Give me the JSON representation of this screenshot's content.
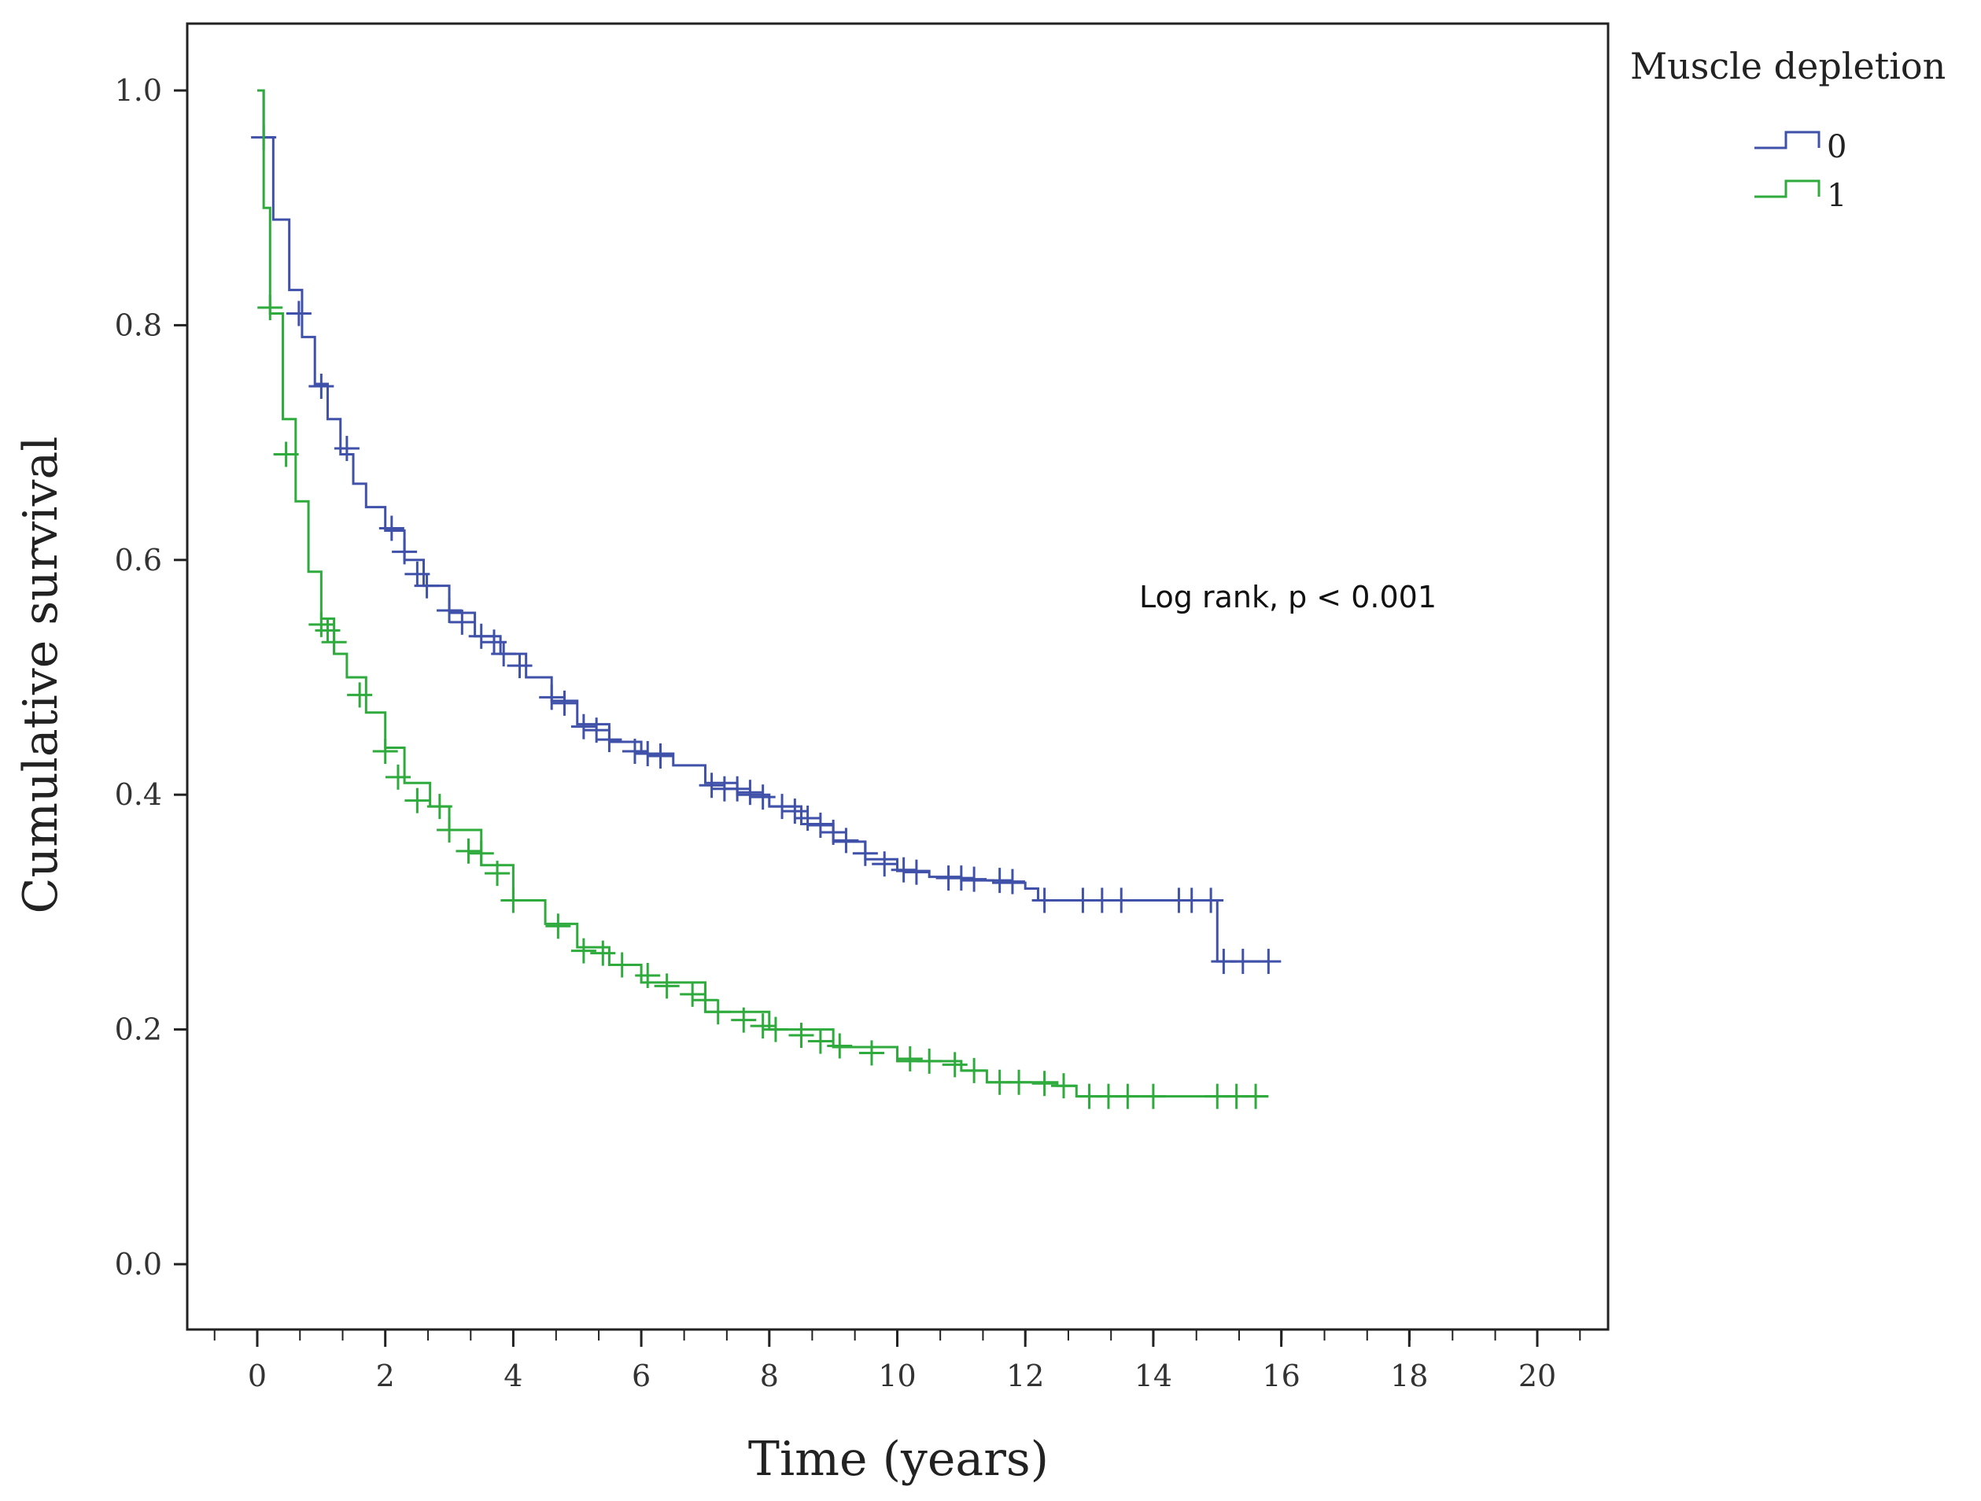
{
  "chart_data": {
    "type": "line",
    "subtype": "kaplan-meier",
    "xlabel": "Time (years)",
    "ylabel": "Cumulative survival",
    "xlim": [
      0,
      20
    ],
    "ylim": [
      0,
      1
    ],
    "x_ticks": [
      0,
      2,
      4,
      6,
      8,
      10,
      12,
      14,
      16,
      18,
      20
    ],
    "x_tick_labels": [
      "0",
      "2",
      "4",
      "6",
      "8",
      "10",
      "12",
      "14",
      "16",
      "18",
      "20"
    ],
    "x_minor_step": 0.667,
    "y_ticks": [
      0,
      0.2,
      0.4,
      0.6,
      0.8,
      1.0
    ],
    "y_tick_labels": [
      "0.0",
      "0.2",
      "0.4",
      "0.6",
      "0.8",
      "1.0"
    ],
    "grid": false,
    "legend": {
      "title": "Muscle depletion",
      "position": "top-right-outside",
      "entries": [
        {
          "label": "0",
          "color": "#3f51a8"
        },
        {
          "label": "1",
          "color": "#2eab3c"
        }
      ]
    },
    "annotation": "Log rank, p < 0.001",
    "series": [
      {
        "name": "0",
        "color": "#3f51a8",
        "x": [
          0,
          0.1,
          0.25,
          0.5,
          0.7,
          0.9,
          1.1,
          1.3,
          1.5,
          1.7,
          2.0,
          2.3,
          2.6,
          3.0,
          3.4,
          3.8,
          4.2,
          4.6,
          5.0,
          5.5,
          6.0,
          6.5,
          7.0,
          7.5,
          8.0,
          8.5,
          9.0,
          9.5,
          10.0,
          10.5,
          11.0,
          11.5,
          12.0,
          12.2,
          14.0,
          15.0,
          15.0,
          15.8
        ],
        "y": [
          1.0,
          0.96,
          0.89,
          0.83,
          0.79,
          0.75,
          0.72,
          0.69,
          0.665,
          0.645,
          0.625,
          0.6,
          0.578,
          0.555,
          0.535,
          0.52,
          0.5,
          0.48,
          0.46,
          0.445,
          0.435,
          0.425,
          0.41,
          0.4,
          0.39,
          0.375,
          0.36,
          0.345,
          0.335,
          0.33,
          0.327,
          0.325,
          0.32,
          0.31,
          0.31,
          0.31,
          0.258,
          0.258
        ],
        "censor_x": [
          0.1,
          0.65,
          1.0,
          1.4,
          2.1,
          2.3,
          2.5,
          2.65,
          3.0,
          3.2,
          3.5,
          3.7,
          3.85,
          4.1,
          4.6,
          4.8,
          5.1,
          5.3,
          5.5,
          5.9,
          6.1,
          6.3,
          7.1,
          7.3,
          7.5,
          7.7,
          7.9,
          8.2,
          8.4,
          8.6,
          8.8,
          9.0,
          9.2,
          9.5,
          9.8,
          10.1,
          10.3,
          10.8,
          11.0,
          11.2,
          11.6,
          11.8,
          12.3,
          12.9,
          13.2,
          13.5,
          14.4,
          14.6,
          14.9,
          15.1,
          15.4,
          15.8
        ],
        "censor_y": [
          0.96,
          0.81,
          0.748,
          0.695,
          0.627,
          0.607,
          0.588,
          0.578,
          0.557,
          0.547,
          0.535,
          0.53,
          0.52,
          0.51,
          0.483,
          0.478,
          0.458,
          0.455,
          0.447,
          0.437,
          0.435,
          0.433,
          0.408,
          0.405,
          0.405,
          0.402,
          0.398,
          0.39,
          0.386,
          0.38,
          0.374,
          0.368,
          0.361,
          0.35,
          0.341,
          0.336,
          0.334,
          0.329,
          0.329,
          0.328,
          0.327,
          0.326,
          0.31,
          0.31,
          0.31,
          0.31,
          0.31,
          0.31,
          0.31,
          0.258,
          0.258,
          0.258
        ]
      },
      {
        "name": "1",
        "color": "#2eab3c",
        "x": [
          0,
          0.1,
          0.2,
          0.4,
          0.6,
          0.8,
          1.0,
          1.2,
          1.4,
          1.7,
          2.0,
          2.3,
          2.7,
          3.0,
          3.5,
          4.0,
          4.5,
          5.0,
          5.5,
          6.0,
          7.0,
          8.0,
          9.0,
          10.0,
          11.0,
          11.4,
          12.5,
          12.8,
          15.8
        ],
        "y": [
          1.0,
          0.9,
          0.81,
          0.72,
          0.65,
          0.59,
          0.55,
          0.52,
          0.5,
          0.47,
          0.44,
          0.41,
          0.39,
          0.37,
          0.34,
          0.31,
          0.29,
          0.27,
          0.255,
          0.24,
          0.215,
          0.2,
          0.185,
          0.173,
          0.165,
          0.155,
          0.152,
          0.143,
          0.143
        ],
        "censor_x": [
          0.2,
          0.45,
          1.0,
          1.1,
          1.2,
          1.6,
          2.0,
          2.2,
          2.5,
          2.85,
          3.0,
          3.3,
          3.5,
          3.75,
          4.0,
          4.7,
          5.1,
          5.4,
          5.7,
          6.1,
          6.4,
          6.8,
          7.0,
          7.2,
          7.6,
          7.9,
          8.1,
          8.5,
          8.8,
          9.1,
          9.6,
          10.2,
          10.5,
          10.9,
          11.2,
          11.6,
          11.9,
          12.3,
          12.6,
          13.0,
          13.3,
          13.6,
          14.0,
          15.0,
          15.3,
          15.6
        ],
        "censor_y": [
          0.815,
          0.69,
          0.545,
          0.54,
          0.53,
          0.485,
          0.437,
          0.415,
          0.395,
          0.39,
          0.37,
          0.352,
          0.35,
          0.333,
          0.31,
          0.288,
          0.267,
          0.265,
          0.255,
          0.246,
          0.237,
          0.23,
          0.225,
          0.215,
          0.208,
          0.203,
          0.2,
          0.195,
          0.19,
          0.186,
          0.18,
          0.175,
          0.173,
          0.17,
          0.165,
          0.155,
          0.155,
          0.154,
          0.152,
          0.143,
          0.143,
          0.143,
          0.143,
          0.143,
          0.143,
          0.143
        ]
      }
    ]
  }
}
